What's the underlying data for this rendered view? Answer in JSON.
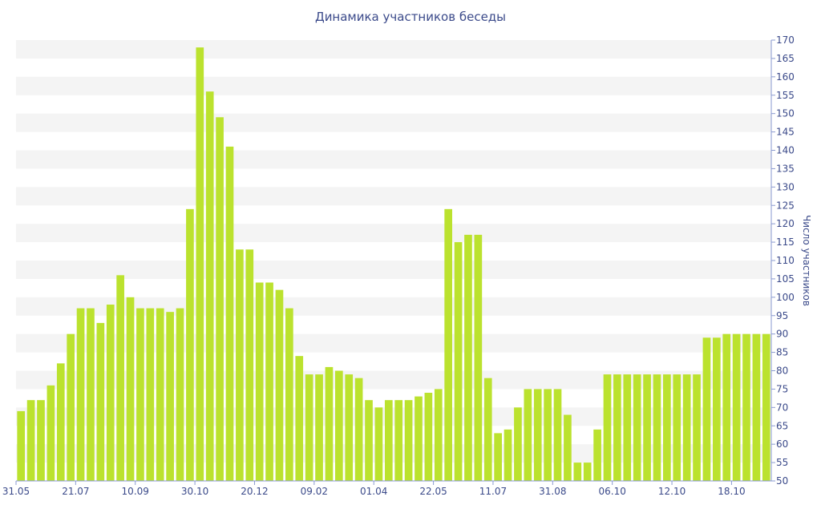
{
  "chart_data": {
    "type": "bar",
    "title": "Динамика участников беседы",
    "xlabel": "",
    "ylabel": "Число участников",
    "ylim": [
      50,
      170
    ],
    "y_ticks": [
      50,
      55,
      60,
      65,
      70,
      75,
      80,
      85,
      90,
      95,
      100,
      105,
      110,
      115,
      120,
      125,
      130,
      135,
      140,
      145,
      150,
      155,
      160,
      165,
      170
    ],
    "y_axis_position": "right",
    "grid": "alternating horizontal bands",
    "x_tick_labels": [
      {
        "index": 0,
        "label": "31.05"
      },
      {
        "index": 6,
        "label": "21.07"
      },
      {
        "index": 12,
        "label": "10.09"
      },
      {
        "index": 18,
        "label": "30.10"
      },
      {
        "index": 24,
        "label": "20.12"
      },
      {
        "index": 30,
        "label": "09.02"
      },
      {
        "index": 36,
        "label": "01.04"
      },
      {
        "index": 42,
        "label": "22.05"
      },
      {
        "index": 48,
        "label": "11.07"
      },
      {
        "index": 54,
        "label": "31.08"
      },
      {
        "index": 60,
        "label": "06.10"
      },
      {
        "index": 66,
        "label": "12.10"
      },
      {
        "index": 72,
        "label": "18.10"
      }
    ],
    "values": [
      69,
      72,
      72,
      76,
      82,
      90,
      97,
      97,
      93,
      98,
      106,
      100,
      97,
      97,
      97,
      96,
      97,
      124,
      168,
      156,
      149,
      141,
      113,
      113,
      104,
      104,
      102,
      97,
      84,
      79,
      79,
      81,
      80,
      79,
      78,
      72,
      70,
      72,
      72,
      72,
      73,
      74,
      75,
      124,
      115,
      117,
      117,
      78,
      63,
      64,
      70,
      75,
      75,
      75,
      75,
      68,
      55,
      55,
      64,
      79,
      79,
      79,
      79,
      79,
      79,
      79,
      79,
      79,
      79,
      89,
      89,
      90,
      90,
      90,
      90,
      90
    ],
    "colors": {
      "bar": "#bbe22e",
      "band": "#f4f4f4",
      "text": "#3b4a8a",
      "axis": "#8a9ad0"
    }
  }
}
